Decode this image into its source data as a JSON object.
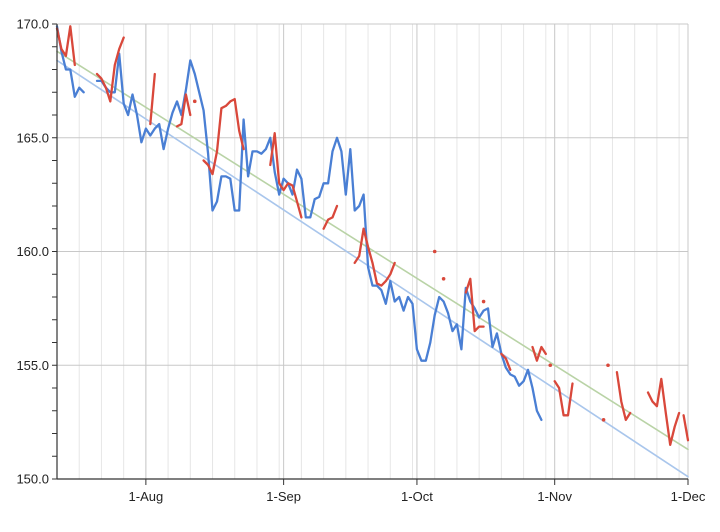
{
  "chart_data": {
    "type": "line",
    "title": "",
    "xlabel": "",
    "ylabel": "",
    "x_type": "date",
    "xlim": [
      "2023-07-12",
      "2023-12-01"
    ],
    "ylim": [
      150,
      170
    ],
    "grid": true,
    "legend": "none",
    "x_ticks": [
      {
        "date": "2023-08-01",
        "label": "1-Aug"
      },
      {
        "date": "2023-09-01",
        "label": "1-Sep"
      },
      {
        "date": "2023-10-01",
        "label": "1-Oct"
      },
      {
        "date": "2023-11-01",
        "label": "1-Nov"
      },
      {
        "date": "2023-12-01",
        "label": "1-Dec"
      }
    ],
    "y_ticks": [
      "150.0",
      "155.0",
      "160.0",
      "165.0",
      "170.0"
    ],
    "series": [
      {
        "color": "#4a7fd4",
        "style": "line",
        "points": [
          [
            "2023-07-12",
            169.9
          ],
          [
            "2023-07-13",
            168.8
          ],
          [
            "2023-07-14",
            168.0
          ],
          [
            "2023-07-15",
            168.0
          ],
          [
            "2023-07-16",
            166.8
          ],
          [
            "2023-07-17",
            167.2
          ],
          [
            "2023-07-18",
            167.0
          ],
          null,
          [
            "2023-07-21",
            167.5
          ],
          [
            "2023-07-22",
            167.5
          ],
          [
            "2023-07-23",
            167.2
          ],
          [
            "2023-07-24",
            167.0
          ],
          [
            "2023-07-25",
            167.0
          ],
          [
            "2023-07-26",
            168.7
          ],
          [
            "2023-07-27",
            166.5
          ],
          [
            "2023-07-28",
            166.0
          ],
          [
            "2023-07-29",
            166.9
          ],
          [
            "2023-07-30",
            166.0
          ],
          [
            "2023-07-31",
            164.8
          ],
          [
            "2023-08-01",
            165.4
          ],
          [
            "2023-08-02",
            165.1
          ],
          [
            "2023-08-03",
            165.4
          ],
          [
            "2023-08-04",
            165.6
          ],
          [
            "2023-08-05",
            164.5
          ],
          [
            "2023-08-06",
            165.4
          ],
          [
            "2023-08-07",
            166.1
          ],
          [
            "2023-08-08",
            166.6
          ],
          [
            "2023-08-09",
            166.0
          ],
          [
            "2023-08-10",
            167.1
          ],
          [
            "2023-08-11",
            168.4
          ],
          [
            "2023-08-12",
            167.8
          ],
          [
            "2023-08-13",
            167.0
          ],
          [
            "2023-08-14",
            166.2
          ],
          [
            "2023-08-15",
            164.3
          ],
          [
            "2023-08-16",
            161.8
          ],
          [
            "2023-08-17",
            162.2
          ],
          [
            "2023-08-18",
            163.3
          ],
          [
            "2023-08-19",
            163.3
          ],
          [
            "2023-08-20",
            163.2
          ],
          [
            "2023-08-21",
            161.8
          ],
          [
            "2023-08-22",
            161.8
          ],
          [
            "2023-08-23",
            165.8
          ],
          [
            "2023-08-24",
            163.3
          ],
          [
            "2023-08-25",
            164.4
          ],
          [
            "2023-08-26",
            164.4
          ],
          [
            "2023-08-27",
            164.3
          ],
          [
            "2023-08-28",
            164.5
          ],
          [
            "2023-08-29",
            165.0
          ],
          [
            "2023-08-30",
            163.5
          ],
          [
            "2023-08-31",
            162.5
          ],
          [
            "2023-09-01",
            163.2
          ],
          [
            "2023-09-02",
            163.0
          ],
          [
            "2023-09-03",
            162.5
          ],
          [
            "2023-09-04",
            163.6
          ],
          [
            "2023-09-05",
            163.2
          ],
          [
            "2023-09-06",
            161.5
          ],
          [
            "2023-09-07",
            161.5
          ],
          [
            "2023-09-08",
            162.3
          ],
          [
            "2023-09-09",
            162.4
          ],
          [
            "2023-09-10",
            163.0
          ],
          [
            "2023-09-11",
            163.0
          ],
          [
            "2023-09-12",
            164.4
          ],
          [
            "2023-09-13",
            165.0
          ],
          [
            "2023-09-14",
            164.4
          ],
          [
            "2023-09-15",
            162.5
          ],
          [
            "2023-09-16",
            164.5
          ],
          [
            "2023-09-17",
            161.8
          ],
          [
            "2023-09-18",
            162.0
          ],
          [
            "2023-09-19",
            162.5
          ],
          [
            "2023-09-20",
            159.3
          ],
          [
            "2023-09-21",
            158.5
          ],
          [
            "2023-09-22",
            158.5
          ],
          [
            "2023-09-23",
            158.3
          ],
          [
            "2023-09-24",
            157.7
          ],
          [
            "2023-09-25",
            158.7
          ],
          [
            "2023-09-26",
            157.8
          ],
          [
            "2023-09-27",
            158.0
          ],
          [
            "2023-09-28",
            157.4
          ],
          [
            "2023-09-29",
            158.0
          ],
          [
            "2023-09-30",
            157.7
          ],
          [
            "2023-10-01",
            155.7
          ],
          [
            "2023-10-02",
            155.2
          ],
          [
            "2023-10-03",
            155.2
          ],
          [
            "2023-10-04",
            156.0
          ],
          [
            "2023-10-05",
            157.2
          ],
          [
            "2023-10-06",
            158.0
          ],
          [
            "2023-10-07",
            157.8
          ],
          [
            "2023-10-08",
            157.3
          ],
          [
            "2023-10-09",
            156.5
          ],
          [
            "2023-10-10",
            156.8
          ],
          [
            "2023-10-11",
            155.7
          ],
          [
            "2023-10-12",
            158.4
          ],
          [
            "2023-10-13",
            157.8
          ],
          [
            "2023-10-14",
            157.5
          ],
          [
            "2023-10-15",
            157.1
          ],
          [
            "2023-10-16",
            157.4
          ],
          [
            "2023-10-17",
            157.5
          ],
          [
            "2023-10-18",
            155.8
          ],
          [
            "2023-10-19",
            156.4
          ],
          [
            "2023-10-20",
            155.5
          ],
          [
            "2023-10-21",
            154.9
          ],
          [
            "2023-10-22",
            154.6
          ],
          [
            "2023-10-23",
            154.5
          ],
          [
            "2023-10-24",
            154.1
          ],
          [
            "2023-10-25",
            154.3
          ],
          [
            "2023-10-26",
            154.8
          ],
          [
            "2023-10-27",
            154.0
          ],
          [
            "2023-10-28",
            153.0
          ],
          [
            "2023-10-29",
            152.6
          ]
        ]
      },
      {
        "color": "#d9483b",
        "style": "line",
        "points": [
          [
            "2023-07-12",
            169.8
          ],
          [
            "2023-07-13",
            168.9
          ],
          [
            "2023-07-14",
            168.6
          ],
          [
            "2023-07-15",
            169.9
          ],
          [
            "2023-07-16",
            168.2
          ],
          null,
          [
            "2023-07-21",
            167.8
          ],
          [
            "2023-07-22",
            167.6
          ],
          [
            "2023-07-23",
            167.2
          ],
          [
            "2023-07-24",
            166.6
          ],
          [
            "2023-07-25",
            168.2
          ],
          [
            "2023-07-26",
            168.9
          ],
          [
            "2023-07-27",
            169.4
          ],
          null,
          [
            "2023-08-02",
            165.6
          ],
          [
            "2023-08-03",
            167.8
          ],
          null,
          [
            "2023-08-08",
            165.5
          ],
          [
            "2023-08-09",
            165.6
          ],
          [
            "2023-08-10",
            166.9
          ],
          [
            "2023-08-11",
            166.0
          ],
          null,
          [
            "2023-08-14",
            164.0
          ],
          [
            "2023-08-15",
            163.8
          ],
          [
            "2023-08-16",
            163.4
          ],
          [
            "2023-08-17",
            164.4
          ],
          [
            "2023-08-18",
            166.3
          ],
          [
            "2023-08-19",
            166.4
          ],
          [
            "2023-08-20",
            166.6
          ],
          [
            "2023-08-21",
            166.7
          ],
          [
            "2023-08-22",
            165.3
          ],
          [
            "2023-08-23",
            164.5
          ],
          null,
          [
            "2023-08-29",
            163.8
          ],
          [
            "2023-08-30",
            165.2
          ],
          [
            "2023-08-31",
            163.0
          ],
          [
            "2023-09-01",
            162.7
          ],
          [
            "2023-09-02",
            163.0
          ],
          [
            "2023-09-03",
            162.9
          ],
          [
            "2023-09-04",
            162.2
          ],
          [
            "2023-09-05",
            161.5
          ],
          null,
          [
            "2023-09-10",
            161.0
          ],
          [
            "2023-09-11",
            161.4
          ],
          [
            "2023-09-12",
            161.5
          ],
          [
            "2023-09-13",
            162.0
          ],
          null,
          [
            "2023-09-17",
            159.5
          ],
          [
            "2023-09-18",
            159.8
          ],
          [
            "2023-09-19",
            161.0
          ],
          [
            "2023-09-20",
            160.2
          ],
          [
            "2023-09-21",
            159.5
          ],
          [
            "2023-09-22",
            158.6
          ],
          [
            "2023-09-23",
            158.5
          ],
          [
            "2023-09-24",
            158.7
          ],
          [
            "2023-09-25",
            159.0
          ],
          [
            "2023-09-26",
            159.5
          ],
          null,
          [
            "2023-10-12",
            158.2
          ],
          [
            "2023-10-13",
            158.8
          ],
          [
            "2023-10-14",
            156.5
          ],
          [
            "2023-10-15",
            156.7
          ],
          [
            "2023-10-16",
            156.7
          ],
          null,
          [
            "2023-10-20",
            155.5
          ],
          [
            "2023-10-21",
            155.3
          ],
          [
            "2023-10-22",
            154.8
          ],
          null,
          [
            "2023-10-27",
            155.8
          ],
          [
            "2023-10-28",
            155.2
          ],
          [
            "2023-10-29",
            155.8
          ],
          [
            "2023-10-30",
            155.5
          ],
          null,
          [
            "2023-11-01",
            154.3
          ],
          [
            "2023-11-02",
            154.0
          ],
          [
            "2023-11-03",
            152.8
          ],
          [
            "2023-11-04",
            152.8
          ],
          [
            "2023-11-05",
            154.2
          ],
          null,
          [
            "2023-11-15",
            154.7
          ],
          [
            "2023-11-16",
            153.4
          ],
          [
            "2023-11-17",
            152.6
          ],
          [
            "2023-11-18",
            152.9
          ],
          null,
          [
            "2023-11-22",
            153.8
          ],
          [
            "2023-11-23",
            153.4
          ],
          [
            "2023-11-24",
            153.2
          ],
          [
            "2023-11-25",
            154.4
          ],
          [
            "2023-11-26",
            152.9
          ],
          [
            "2023-11-27",
            151.5
          ],
          [
            "2023-11-28",
            152.3
          ],
          [
            "2023-11-29",
            152.9
          ],
          null,
          [
            "2023-11-30",
            152.8
          ],
          [
            "2023-12-01",
            151.7
          ]
        ]
      },
      {
        "color": "#d9483b",
        "style": "markers",
        "points": [
          [
            "2023-08-12",
            166.6
          ],
          [
            "2023-10-05",
            160.0
          ],
          [
            "2023-10-07",
            158.8
          ],
          [
            "2023-10-16",
            157.8
          ],
          [
            "2023-10-31",
            155.0
          ],
          [
            "2023-11-12",
            152.6
          ],
          [
            "2023-11-13",
            155.0
          ]
        ]
      },
      {
        "color": "#b9d3a6",
        "style": "trendline",
        "points": [
          [
            "2023-07-12",
            168.8
          ],
          [
            "2023-12-01",
            151.3
          ]
        ]
      },
      {
        "color": "#a9c6ec",
        "style": "trendline",
        "points": [
          [
            "2023-07-12",
            168.4
          ],
          [
            "2023-12-01",
            150.1
          ]
        ]
      }
    ]
  }
}
